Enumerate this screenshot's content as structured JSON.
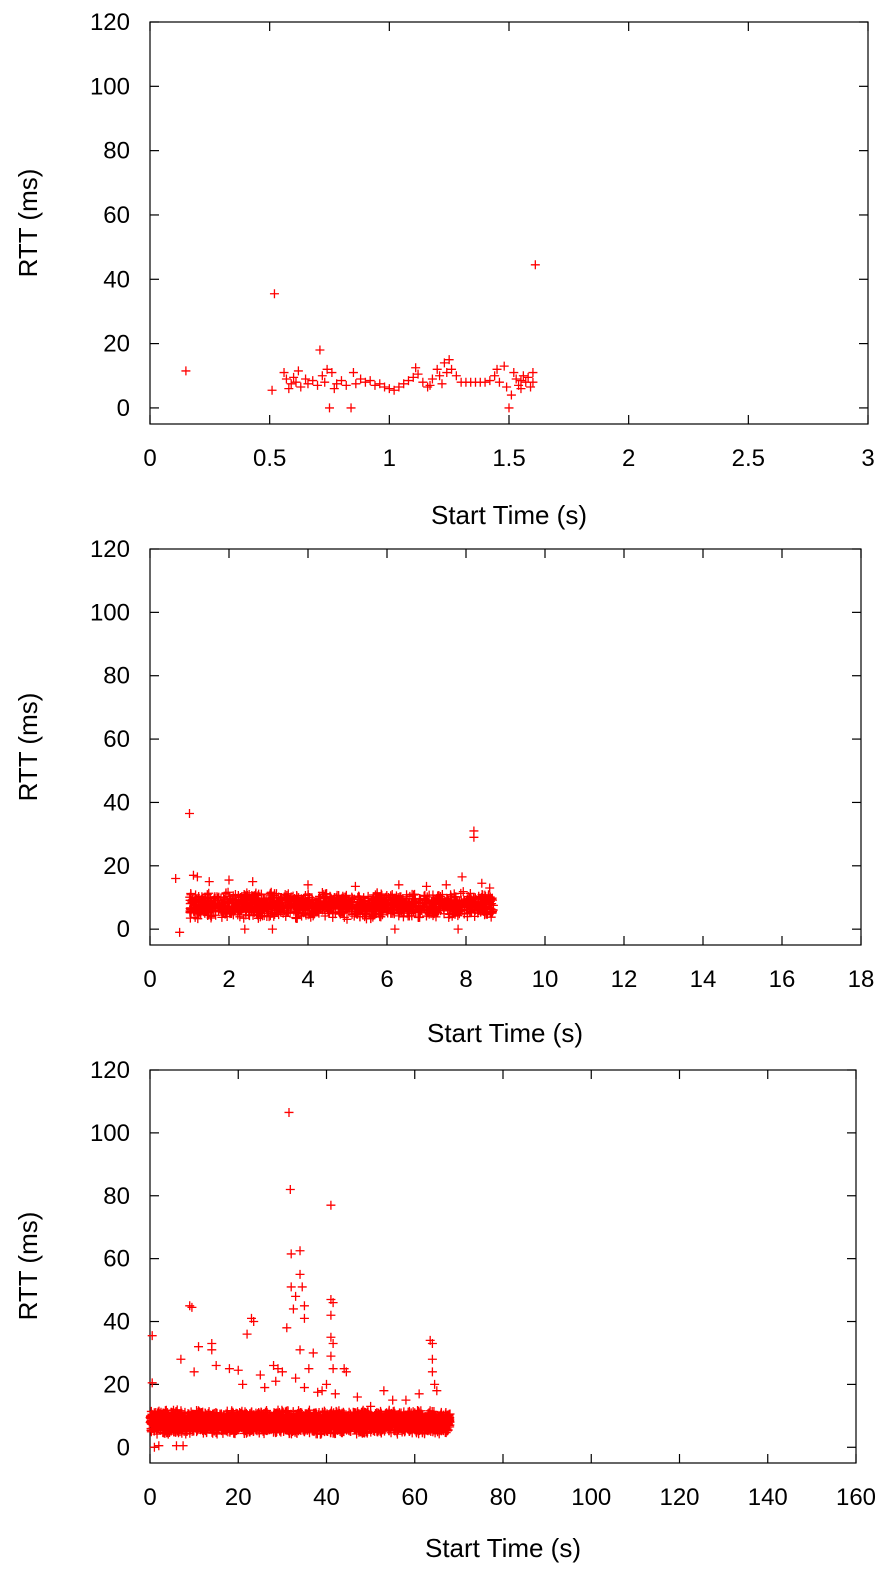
{
  "point_color": "#ff0000",
  "point_marker": "plus",
  "chart_data": [
    {
      "type": "scatter",
      "xlabel": "Start Time (s)",
      "ylabel": "RTT (ms)",
      "xlim": [
        0,
        3
      ],
      "ylim": [
        -5,
        120
      ],
      "xticks": [
        0,
        0.5,
        1,
        1.5,
        2,
        2.5,
        3
      ],
      "xtick_labels": [
        "0",
        "0.5",
        "1",
        "1.5",
        "2",
        "2.5",
        "3"
      ],
      "yticks": [
        0,
        20,
        40,
        60,
        80,
        100,
        120
      ],
      "ytick_labels": [
        "0",
        "20",
        "40",
        "60",
        "80",
        "100",
        "120"
      ],
      "grid": false,
      "legend": "none",
      "series": [
        {
          "points": [
            [
              0.15,
              11.5
            ],
            [
              0.52,
              35.5
            ],
            [
              0.51,
              5.5
            ],
            [
              0.56,
              11
            ],
            [
              0.57,
              9
            ],
            [
              0.58,
              6
            ],
            [
              0.59,
              7.5
            ],
            [
              0.6,
              9.5
            ],
            [
              0.61,
              8
            ],
            [
              0.62,
              11.5
            ],
            [
              0.63,
              6.5
            ],
            [
              0.65,
              9
            ],
            [
              0.66,
              7.5
            ],
            [
              0.68,
              8.5
            ],
            [
              0.7,
              7
            ],
            [
              0.71,
              18
            ],
            [
              0.72,
              10
            ],
            [
              0.73,
              8
            ],
            [
              0.74,
              12
            ],
            [
              0.75,
              0
            ],
            [
              0.76,
              11
            ],
            [
              0.77,
              6
            ],
            [
              0.78,
              7.5
            ],
            [
              0.8,
              8.5
            ],
            [
              0.82,
              7
            ],
            [
              0.84,
              0
            ],
            [
              0.85,
              11
            ],
            [
              0.86,
              7.5
            ],
            [
              0.88,
              9
            ],
            [
              0.9,
              8
            ],
            [
              0.92,
              8.5
            ],
            [
              0.94,
              7
            ],
            [
              0.96,
              7.5
            ],
            [
              0.98,
              6.5
            ],
            [
              1.0,
              6
            ],
            [
              1.02,
              5.5
            ],
            [
              1.04,
              6.5
            ],
            [
              1.06,
              7.5
            ],
            [
              1.08,
              8.5
            ],
            [
              1.1,
              9.5
            ],
            [
              1.11,
              12.5
            ],
            [
              1.12,
              10.5
            ],
            [
              1.14,
              8
            ],
            [
              1.16,
              6.5
            ],
            [
              1.17,
              7
            ],
            [
              1.18,
              9
            ],
            [
              1.2,
              12
            ],
            [
              1.21,
              10
            ],
            [
              1.22,
              7.5
            ],
            [
              1.23,
              14
            ],
            [
              1.24,
              11
            ],
            [
              1.25,
              15
            ],
            [
              1.26,
              12
            ],
            [
              1.28,
              10
            ],
            [
              1.3,
              8
            ],
            [
              1.32,
              8
            ],
            [
              1.34,
              8
            ],
            [
              1.36,
              8
            ],
            [
              1.38,
              8
            ],
            [
              1.4,
              8
            ],
            [
              1.42,
              8.5
            ],
            [
              1.44,
              10
            ],
            [
              1.45,
              12
            ],
            [
              1.46,
              8
            ],
            [
              1.48,
              13
            ],
            [
              1.49,
              6.5
            ],
            [
              1.5,
              0
            ],
            [
              1.51,
              4
            ],
            [
              1.52,
              11
            ],
            [
              1.53,
              9
            ],
            [
              1.54,
              7
            ],
            [
              1.55,
              8.5
            ],
            [
              1.56,
              10
            ],
            [
              1.57,
              8
            ],
            [
              1.58,
              9.5
            ],
            [
              1.59,
              6.5
            ],
            [
              1.6,
              8
            ],
            [
              1.61,
              44.5
            ],
            [
              1.6,
              11
            ],
            [
              1.55,
              6
            ]
          ]
        }
      ]
    },
    {
      "type": "scatter",
      "xlabel": "Start Time (s)",
      "ylabel": "RTT (ms)",
      "xlim": [
        0,
        18
      ],
      "ylim": [
        -5,
        120
      ],
      "xticks": [
        0,
        2,
        4,
        6,
        8,
        10,
        12,
        14,
        16,
        18
      ],
      "xtick_labels": [
        "0",
        "2",
        "4",
        "6",
        "8",
        "10",
        "12",
        "14",
        "16",
        "18"
      ],
      "yticks": [
        0,
        20,
        40,
        60,
        80,
        100,
        120
      ],
      "ytick_labels": [
        "0",
        "20",
        "40",
        "60",
        "80",
        "100",
        "120"
      ],
      "grid": false,
      "legend": "none",
      "series": [
        {
          "points": [
            [
              0.65,
              16
            ],
            [
              0.75,
              -1
            ],
            [
              1.0,
              36.5
            ],
            [
              1.1,
              17
            ],
            [
              1.2,
              16.5
            ],
            [
              1.5,
              15
            ],
            [
              2.0,
              15.5
            ],
            [
              2.4,
              0
            ],
            [
              2.6,
              15
            ],
            [
              3.1,
              0
            ],
            [
              4.0,
              14
            ],
            [
              5.2,
              13.5
            ],
            [
              6.2,
              0
            ],
            [
              6.3,
              14
            ],
            [
              7.0,
              13.5
            ],
            [
              7.5,
              14
            ],
            [
              7.8,
              0
            ],
            [
              7.9,
              16.5
            ],
            [
              8.2,
              31
            ],
            [
              8.2,
              29
            ],
            [
              8.4,
              14.5
            ],
            [
              8.6,
              13
            ]
          ],
          "band": {
            "x_range": [
              1.0,
              8.7
            ],
            "y_range": [
              3,
              12
            ],
            "count": 1400
          }
        }
      ]
    },
    {
      "type": "scatter",
      "xlabel": "Start Time (s)",
      "ylabel": "RTT (ms)",
      "xlim": [
        0,
        160
      ],
      "ylim": [
        -5,
        120
      ],
      "xticks": [
        0,
        20,
        40,
        60,
        80,
        100,
        120,
        140,
        160
      ],
      "xtick_labels": [
        "0",
        "20",
        "40",
        "60",
        "80",
        "100",
        "120",
        "140",
        "160"
      ],
      "yticks": [
        0,
        20,
        40,
        60,
        80,
        100,
        120
      ],
      "ytick_labels": [
        "0",
        "20",
        "40",
        "60",
        "80",
        "100",
        "120"
      ],
      "grid": false,
      "legend": "none",
      "series": [
        {
          "points": [
            [
              0.5,
              35.5
            ],
            [
              0.5,
              20.5
            ],
            [
              1.0,
              0
            ],
            [
              2.0,
              0.5
            ],
            [
              6.0,
              0.5
            ],
            [
              7.5,
              0.5
            ],
            [
              7.0,
              28
            ],
            [
              9.0,
              45
            ],
            [
              9.5,
              44.5
            ],
            [
              10,
              24
            ],
            [
              11,
              32
            ],
            [
              14,
              33
            ],
            [
              14,
              31
            ],
            [
              15,
              26
            ],
            [
              18,
              25
            ],
            [
              20,
              24.5
            ],
            [
              21,
              20
            ],
            [
              22,
              36
            ],
            [
              23,
              41
            ],
            [
              23.5,
              40
            ],
            [
              25,
              23
            ],
            [
              28,
              26
            ],
            [
              28.5,
              21
            ],
            [
              29,
              25
            ],
            [
              31,
              38
            ],
            [
              31.5,
              106.5
            ],
            [
              31.8,
              82
            ],
            [
              32,
              61.5
            ],
            [
              32,
              51
            ],
            [
              32.5,
              44
            ],
            [
              33,
              48
            ],
            [
              34,
              62.5
            ],
            [
              34,
              55
            ],
            [
              34.5,
              51
            ],
            [
              35,
              45
            ],
            [
              35,
              41
            ],
            [
              34,
              31
            ],
            [
              33,
              22
            ],
            [
              35,
              19
            ],
            [
              36,
              25
            ],
            [
              37,
              30
            ],
            [
              38,
              17.5
            ],
            [
              39,
              18
            ],
            [
              40,
              20
            ],
            [
              41,
              77
            ],
            [
              41,
              47
            ],
            [
              41.5,
              46
            ],
            [
              41,
              42
            ],
            [
              41,
              35
            ],
            [
              41.5,
              33
            ],
            [
              41,
              29
            ],
            [
              41.5,
              25
            ],
            [
              42,
              17
            ],
            [
              44,
              25
            ],
            [
              44.5,
              24
            ],
            [
              47,
              16
            ],
            [
              50,
              13
            ],
            [
              53,
              18
            ],
            [
              55,
              15
            ],
            [
              58,
              15
            ],
            [
              61,
              17
            ],
            [
              63.5,
              34
            ],
            [
              64,
              33
            ],
            [
              64,
              28
            ],
            [
              64,
              24
            ],
            [
              64.5,
              20
            ],
            [
              65,
              18
            ],
            [
              60,
              11
            ],
            [
              30,
              24
            ],
            [
              26,
              19
            ]
          ],
          "band": {
            "x_range": [
              0,
              68
            ],
            "y_range": [
              4,
              12
            ],
            "count": 3200
          }
        }
      ]
    }
  ]
}
